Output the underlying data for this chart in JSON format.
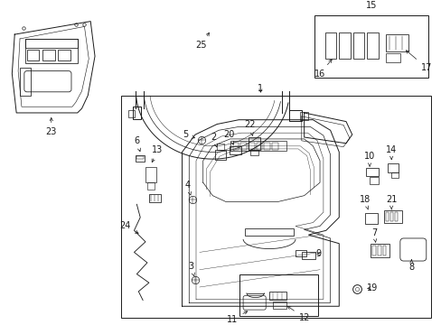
{
  "background_color": "#ffffff",
  "line_color": "#1a1a1a",
  "fig_width": 4.89,
  "fig_height": 3.6,
  "dpi": 100,
  "label_fs": 7,
  "arrow_lw": 0.5,
  "draw_lw": 0.7
}
